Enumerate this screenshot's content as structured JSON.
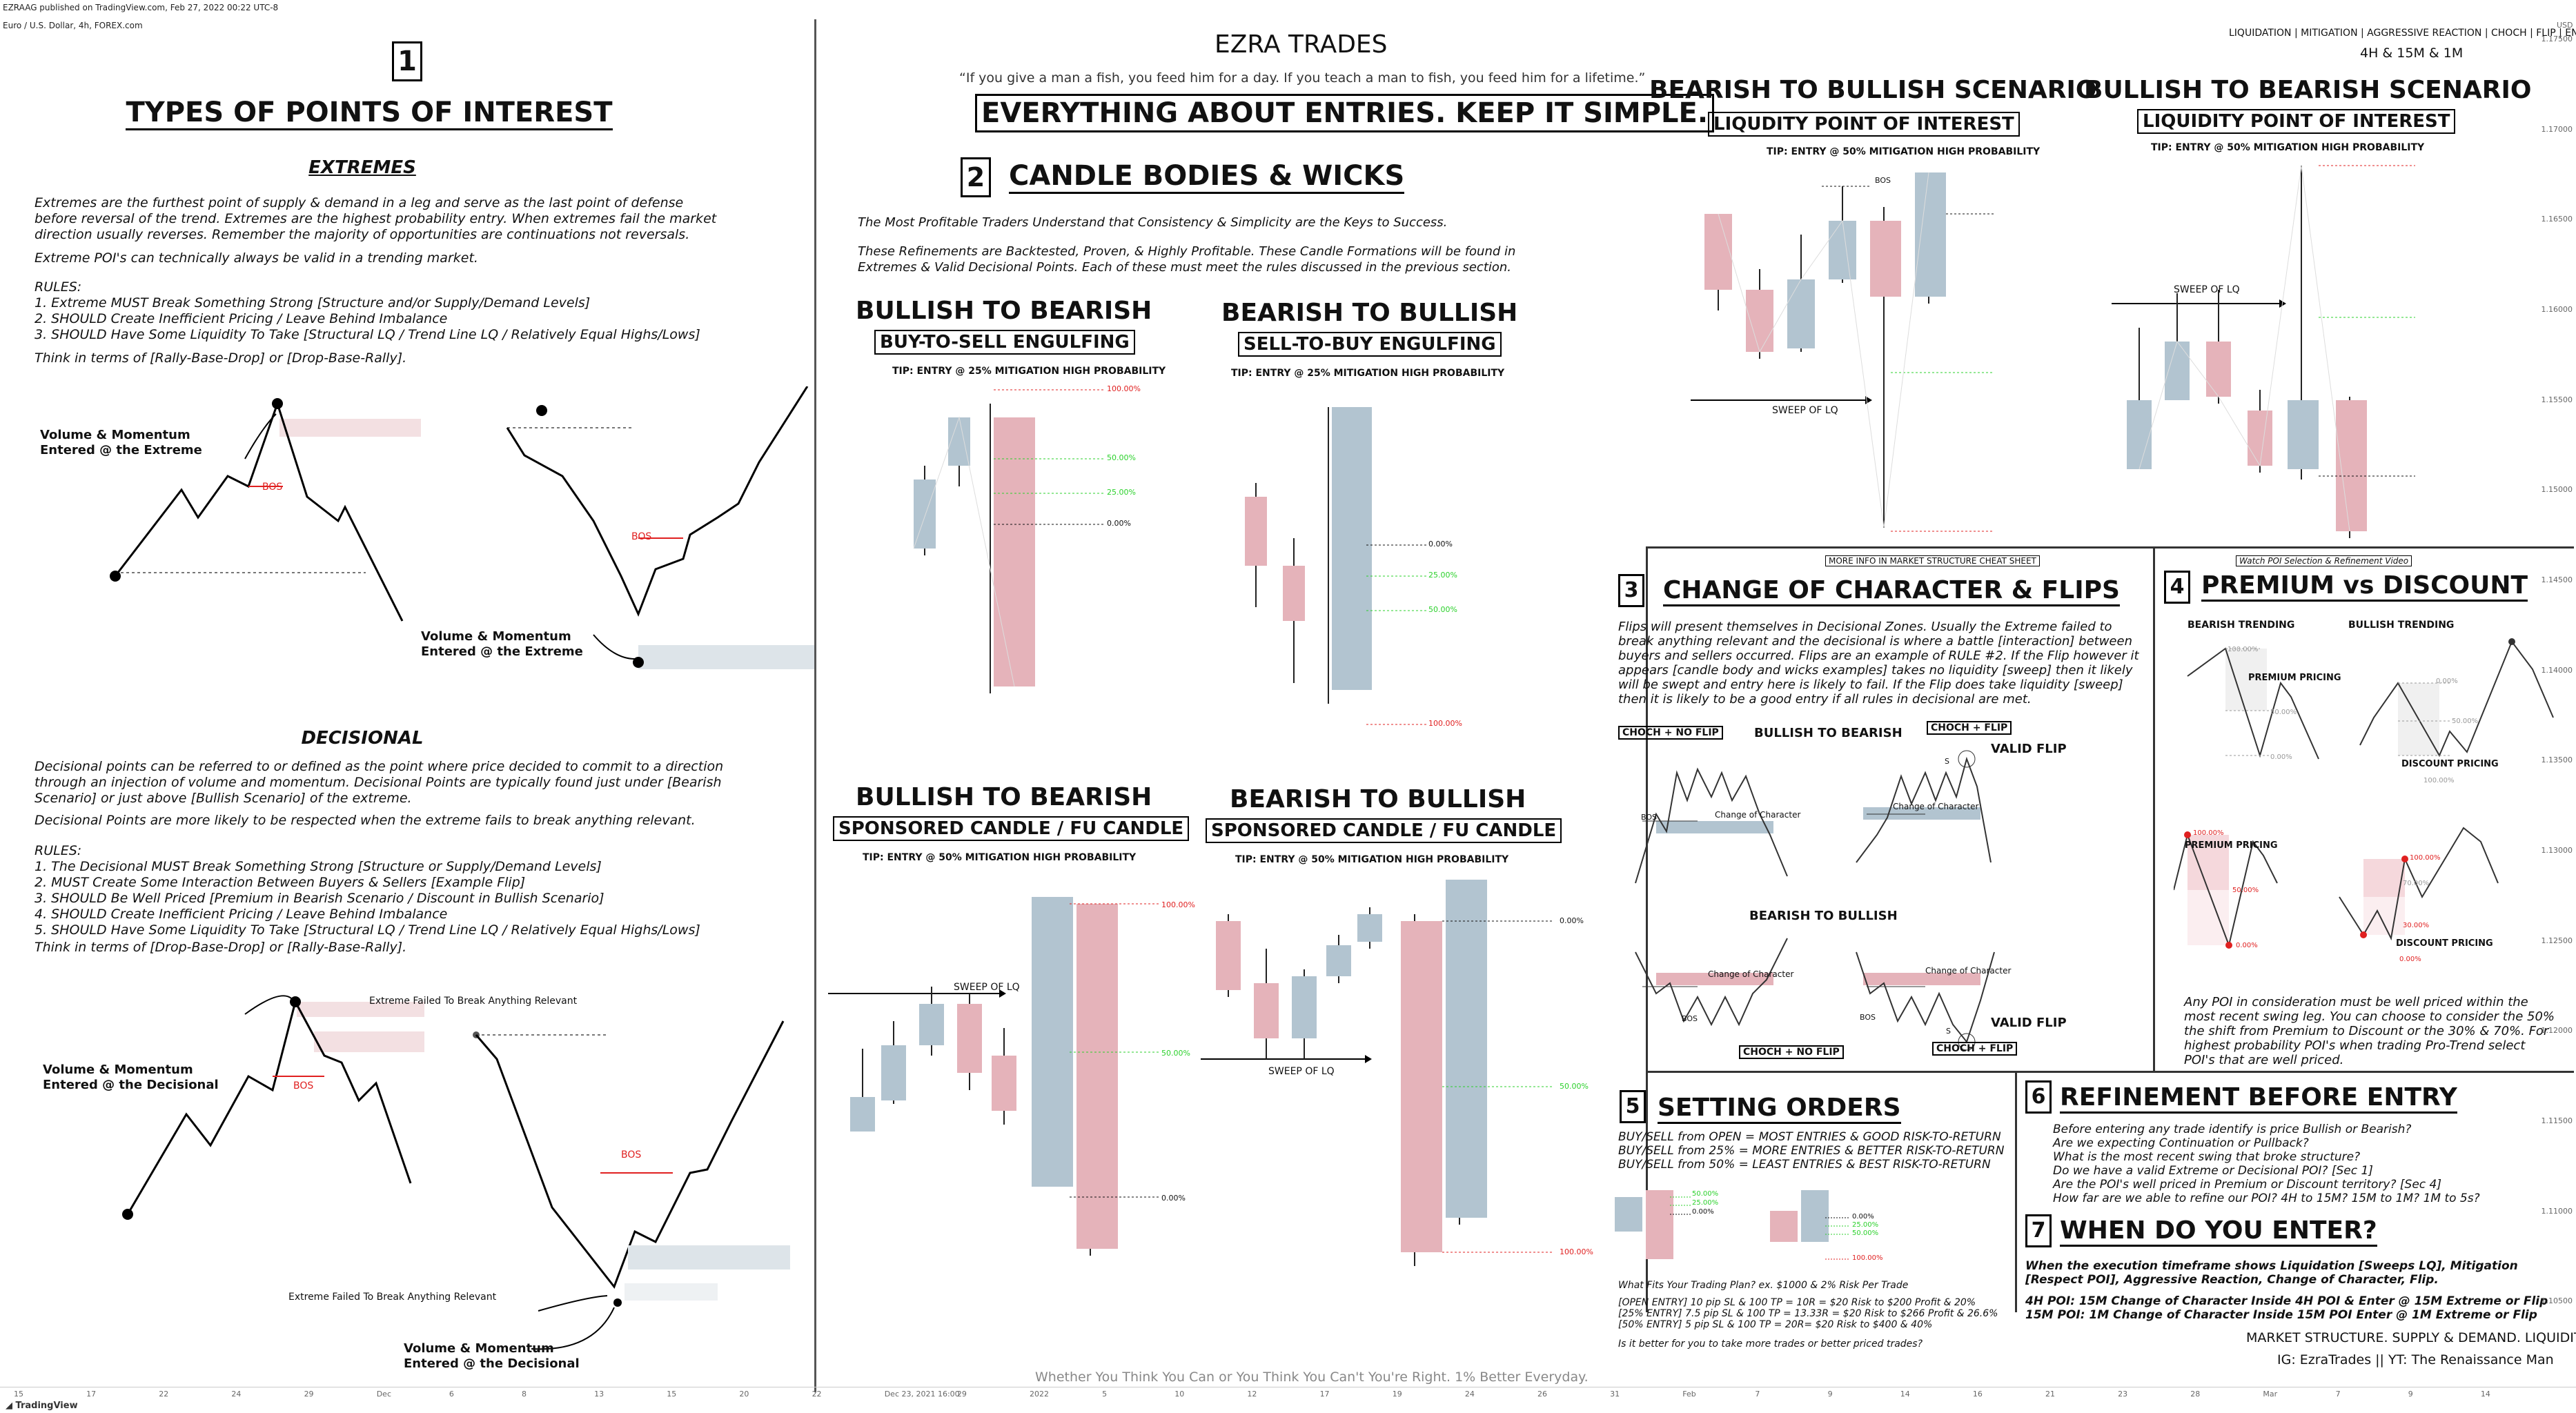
{
  "header": {
    "published": "EZRAAG published on TradingView.com, Feb 27, 2022 00:22 UTC-8",
    "symbol": "Euro / U.S. Dollar, 4h, FOREX.com",
    "brand": "EZRA TRADES",
    "quote": "“If you give a man a fish, you feed him for a day. If you teach a man to fish, you feed him for a lifetime.”",
    "banner": "EVERYTHING ABOUT ENTRIES. KEEP IT SIMPLE.",
    "keywords": "LIQUIDATION | MITIGATION | AGGRESSIVE REACTION | CHOCH | FLIP | ENTER",
    "timeframes": "4H & 15M & 1M",
    "currency": "USD"
  },
  "s1": {
    "num": "1",
    "title": "TYPES OF POINTS OF INTEREST",
    "extremes_title": "EXTREMES",
    "extremes_p1": "Extremes are the furthest point of supply & demand in a leg and serve as the last point of defense before reversal of the trend. Extremes are the highest probability entry. When extremes fail the market direction usually reverses. Remember the majority of opportunities are continuations not reversals.",
    "extremes_p2": "Extreme POI's can technically always be valid in a trending market.",
    "rules_label": "RULES:",
    "extremes_rules": [
      "1. Extreme MUST Break Something Strong [Structure and/or Supply/Demand Levels]",
      "2. SHOULD Create Inefficient Pricing / Leave Behind Imbalance",
      "3. SHOULD Have Some Liquidity To Take [Structural LQ / Trend Line LQ / Relatively Equal Highs/Lows]"
    ],
    "extremes_think": "Think in terms of [Rally-Base-Drop] or [Drop-Base-Rally].",
    "vol_extreme": "Volume & Momentum Entered @ the Extreme",
    "bos": "BOS",
    "decisional_title": "DECISIONAL",
    "decisional_p1": "Decisional points can be referred to or defined as the point where price decided to commit to a direction through an injection of volume and momentum. Decisional Points are typically found just under [Bearish Scenario] or just above [Bullish Scenario] of the extreme.",
    "decisional_p2": "Decisional Points are more likely to be respected when the extreme fails to break anything relevant.",
    "decisional_rules": [
      "1. The Decisional MUST Break Something Strong [Structure or Supply/Demand Levels]",
      "2. MUST Create Some Interaction Between Buyers & Sellers [Example Flip]",
      "3. SHOULD Be Well Priced [Premium in Bearish Scenario / Discount in Bullish Scenario]",
      "4. SHOULD Create Inefficient Pricing / Leave Behind Imbalance",
      "5. SHOULD Have Some Liquidity To Take [Structural LQ / Trend Line LQ / Relatively Equal Highs/Lows]"
    ],
    "decisional_think": "Think in terms of [Drop-Base-Drop] or [Rally-Base-Rally].",
    "failed": "Extreme Failed To Break Anything Relevant",
    "vol_decisional": "Volume & Momentum Entered @ the Decisional"
  },
  "s2": {
    "num": "2",
    "title": "CANDLE BODIES & WICKS",
    "p1": "The Most Profitable Traders Understand that Consistency & Simplicity are the Keys to Success.",
    "p2": "These Refinements are Backtested, Proven, & Highly Profitable. These Candle Formations will be found in Extremes & Valid Decisional Points. Each of these must meet the rules discussed in the previous section.",
    "btb": "BULLISH TO BEARISH",
    "btbull": "BEARISH TO BULLISH",
    "bts": "BUY-TO-SELL ENGULFING",
    "stb": "SELL-TO-BUY ENGULFING",
    "tip25": "TIP: ENTRY @ 25% MITIGATION HIGH PROBABILITY",
    "sponsored": "SPONSORED CANDLE / FU CANDLE",
    "tip50": "TIP: ENTRY @ 50% MITIGATION HIGH PROBABILITY",
    "sweep": "SWEEP OF LQ",
    "lv100": "100.00%",
    "lv50": "50.00%",
    "lv25": "25.00%",
    "lv0": "0.00%",
    "footer": "Whether You Think You Can or You Think You Can't You're Right. 1% Better Everyday."
  },
  "scen": {
    "b2b": "BEARISH TO BULLISH SCENARIO",
    "bu2be": "BULLISH TO BEARISH SCENARIO",
    "lqpoi": "LIQUDITY POINT OF INTEREST",
    "lqpoi2": "LIQUIDITY POINT OF INTEREST",
    "tip": "TIP: ENTRY @ 50% MITIGATION HIGH PROBABILITY",
    "sweep": "SWEEP OF LQ",
    "bos": "BOS"
  },
  "s3": {
    "num": "3",
    "note": "MORE INFO IN MARKET STRUCTURE CHEAT SHEET",
    "title": "CHANGE OF CHARACTER & FLIPS",
    "p": "Flips will present themselves in Decisional Zones. Usually the Extreme failed to break anything relevant and the decisional is where a battle [interaction] between buyers and sellers occurred. Flips are an example of RULE #2. If the Flip however it appears [candle body and wicks examples] takes no liquidity [sweep] then it likely will be swept and entry here is likely to fail. If the Flip does take liquidity [sweep] then it is likely to be a good entry if all rules in decisional are met.",
    "choch_noflip": "CHOCH + NO FLIP",
    "choch_flip": "CHOCH + FLIP",
    "b2be": "BULLISH TO BEARISH",
    "be2b": "BEARISH TO BULLISH",
    "valid": "VALID FLIP",
    "coc": "Change of Character",
    "bos": "BOS",
    "s": "S"
  },
  "s4": {
    "num": "4",
    "note": "Watch POI Selection & Refinement Video",
    "title": "PREMIUM vs DISCOUNT",
    "bear": "BEARISH TRENDING",
    "bull": "BULLISH TRENDING",
    "premium": "PREMIUM PRICING",
    "discount": "DISCOUNT PRICING",
    "p": "Any POI in consideration must be well priced within the most recent swing leg. You can choose to consider the 50% the shift from Premium to Discount or the 30% & 70%. For highest probability POI's when trading Pro-Trend select POI's that are well priced.",
    "l100": "100.00%",
    "l50": "50.00%",
    "l0": "0.00%",
    "l70": "70.00%",
    "l30": "30.00%"
  },
  "s5": {
    "num": "5",
    "title": "SETTING ORDERS",
    "lines": [
      "BUY/SELL from OPEN = MOST ENTRIES & GOOD RISK-TO-RETURN",
      "BUY/SELL from 25% = MORE ENTRIES & BETTER RISK-TO-RETURN",
      "BUY/SELL from 50% = LEAST ENTRIES & BEST RISK-TO-RETURN"
    ],
    "plan": "What Fits Your Trading Plan? ex. $1000 & 2% Risk Per Trade",
    "calc": [
      "[OPEN ENTRY] 10 pip SL & 100 TP = 10R = $20 Risk to $200 Profit & 20%",
      "[25% ENTRY] 7.5 pip SL & 100 TP = 13.33R = $20 Risk to $266 Profit & 26.6%",
      "[50% ENTRY] 5 pip SL & 100 TP = 20R= $20 Risk to $400 & 40%"
    ],
    "q": "Is it better for you to take more trades or better priced trades?"
  },
  "s6": {
    "num": "6",
    "title": "REFINEMENT BEFORE ENTRY",
    "lines": [
      "Before entering any trade identify is price Bullish or Bearish?",
      "Are we expecting Continuation or Pullback?",
      "What is the most recent swing that broke structure?",
      "Do we have a valid Extreme or Decisional POI? [Sec 1]",
      "Are the POI's well priced in Premium or Discount territory? [Sec 4]",
      "How far are we able to refine our POI? 4H to 15M? 15M to 1M? 1M to 5s?"
    ]
  },
  "s7": {
    "num": "7",
    "title": "WHEN DO YOU ENTER?",
    "p1": "When the execution timeframe shows Liquidation [Sweeps LQ], Mitigation [Respect POI], Aggressive Reaction, Change of Character, Flip.",
    "p2a": "4H POI: 15M Change of Character Inside 4H POI & Enter @ 15M Extreme or Flip",
    "p2b": "15M POI: 1M Change of Character Inside 15M POI Enter @ 1M Extreme or Flip",
    "tag": "MARKET STRUCTURE. SUPPLY & DEMAND. LIQUIDITY.",
    "ig": "IG: EzraTrades || YT: The Renaissance Man"
  },
  "price_axis": [
    "1.17500",
    "1.17000",
    "1.16500",
    "1.16000",
    "1.15500",
    "1.15000",
    "1.14500",
    "1.14000",
    "1.13500",
    "1.13000",
    "1.12500",
    "1.12000",
    "1.11500",
    "1.11000",
    "1.10500"
  ],
  "axis_dates": [
    "15",
    "17",
    "22",
    "24",
    "29",
    "Dec",
    "6",
    "8",
    "13",
    "15",
    "20",
    "22",
    "Dec 23, 2021 16:00",
    "29",
    "2022",
    "5",
    "10",
    "12",
    "17",
    "19",
    "24",
    "26",
    "31",
    "Feb",
    "7",
    "9",
    "14",
    "16",
    "21",
    "23",
    "28",
    "Mar",
    "7",
    "9",
    "14"
  ],
  "tv": "TradingView",
  "colors": {
    "bull": "#b2c4d0",
    "bear": "#e5b3ba",
    "bos": "#e02020",
    "fib_green": "#2bd12b",
    "fib_red": "#e02020"
  }
}
